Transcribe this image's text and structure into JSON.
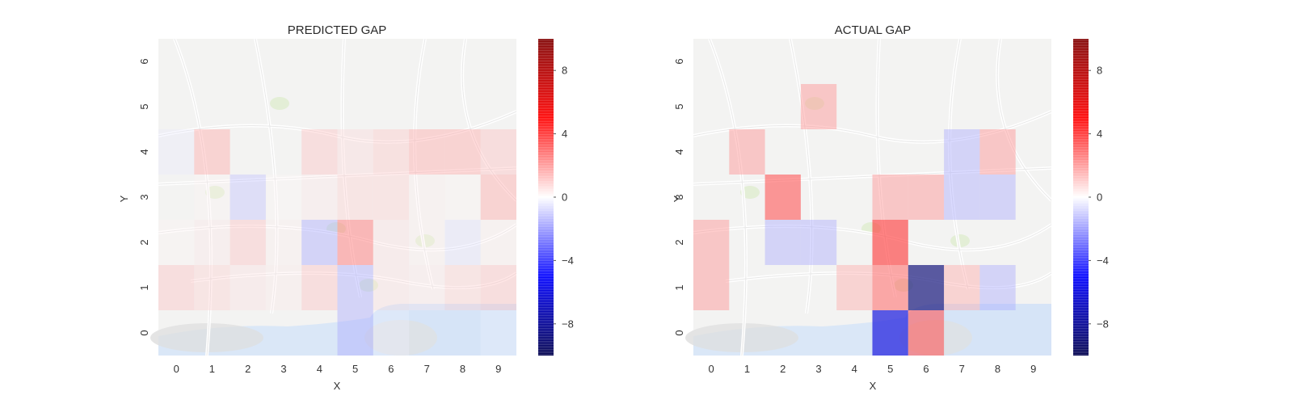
{
  "chart_data": [
    {
      "type": "heatmap",
      "title": "PREDICTED GAP",
      "xlabel": "X",
      "ylabel": "Y",
      "x_ticks": [
        "0",
        "1",
        "2",
        "3",
        "4",
        "5",
        "6",
        "7",
        "8",
        "9"
      ],
      "y_ticks": [
        "0",
        "1",
        "2",
        "3",
        "4",
        "5",
        "6"
      ],
      "colorbar": {
        "range": [
          -10,
          10
        ],
        "ticks": [
          "8",
          "4",
          "0",
          "−4",
          "−8"
        ],
        "tick_values": [
          8,
          4,
          0,
          -4,
          -8
        ],
        "colormap": "seismic"
      },
      "background": "street map",
      "values": [
        [
          0,
          0,
          0,
          0,
          0,
          -2,
          -0.3,
          0,
          0,
          -0.3
        ],
        [
          1.5,
          1.2,
          0.8,
          0.5,
          1.5,
          -2,
          0.8,
          0.6,
          1.2,
          1.5
        ],
        [
          0.3,
          0.6,
          1.5,
          0.4,
          -2,
          3,
          0.8,
          0.4,
          -0.8,
          0.4
        ],
        [
          0,
          0.3,
          -1.5,
          0.2,
          0.6,
          1.2,
          1.2,
          0.4,
          0.3,
          2
        ],
        [
          -0.5,
          2,
          0,
          0,
          1.5,
          1,
          1.4,
          2,
          2,
          1.6
        ],
        [
          0,
          0,
          0,
          0,
          0,
          0,
          0,
          0,
          0,
          0
        ],
        [
          0,
          0,
          0,
          0,
          0,
          0,
          0,
          0,
          0,
          0
        ]
      ]
    },
    {
      "type": "heatmap",
      "title": "ACTUAL GAP",
      "xlabel": "X",
      "ylabel": "Y",
      "x_ticks": [
        "0",
        "1",
        "2",
        "3",
        "4",
        "5",
        "6",
        "7",
        "8",
        "9"
      ],
      "y_ticks": [
        "0",
        "1",
        "2",
        "3",
        "4",
        "5",
        "6"
      ],
      "colorbar": {
        "range": [
          -10,
          10
        ],
        "ticks": [
          "8",
          "4",
          "0",
          "−4",
          "−8"
        ],
        "tick_values": [
          8,
          4,
          0,
          -4,
          -8
        ],
        "colormap": "seismic"
      },
      "background": "street map",
      "values": [
        [
          0,
          0,
          0,
          0,
          0,
          -6,
          4,
          0,
          0,
          0
        ],
        [
          2.5,
          0,
          0,
          0,
          2,
          3.5,
          -9,
          2,
          -2,
          0
        ],
        [
          2.5,
          0,
          -2,
          -2,
          0,
          4.5,
          0,
          0,
          0,
          0
        ],
        [
          0,
          0,
          4,
          0,
          0,
          2.5,
          2.5,
          -2,
          -2,
          0
        ],
        [
          0,
          2.5,
          0,
          0,
          0,
          0,
          0,
          -2,
          2.5,
          0
        ],
        [
          0,
          0,
          0,
          2.5,
          0,
          0,
          0,
          0,
          0,
          0
        ],
        [
          0,
          0,
          0,
          0,
          0,
          0,
          0,
          0,
          0,
          0
        ]
      ]
    }
  ]
}
